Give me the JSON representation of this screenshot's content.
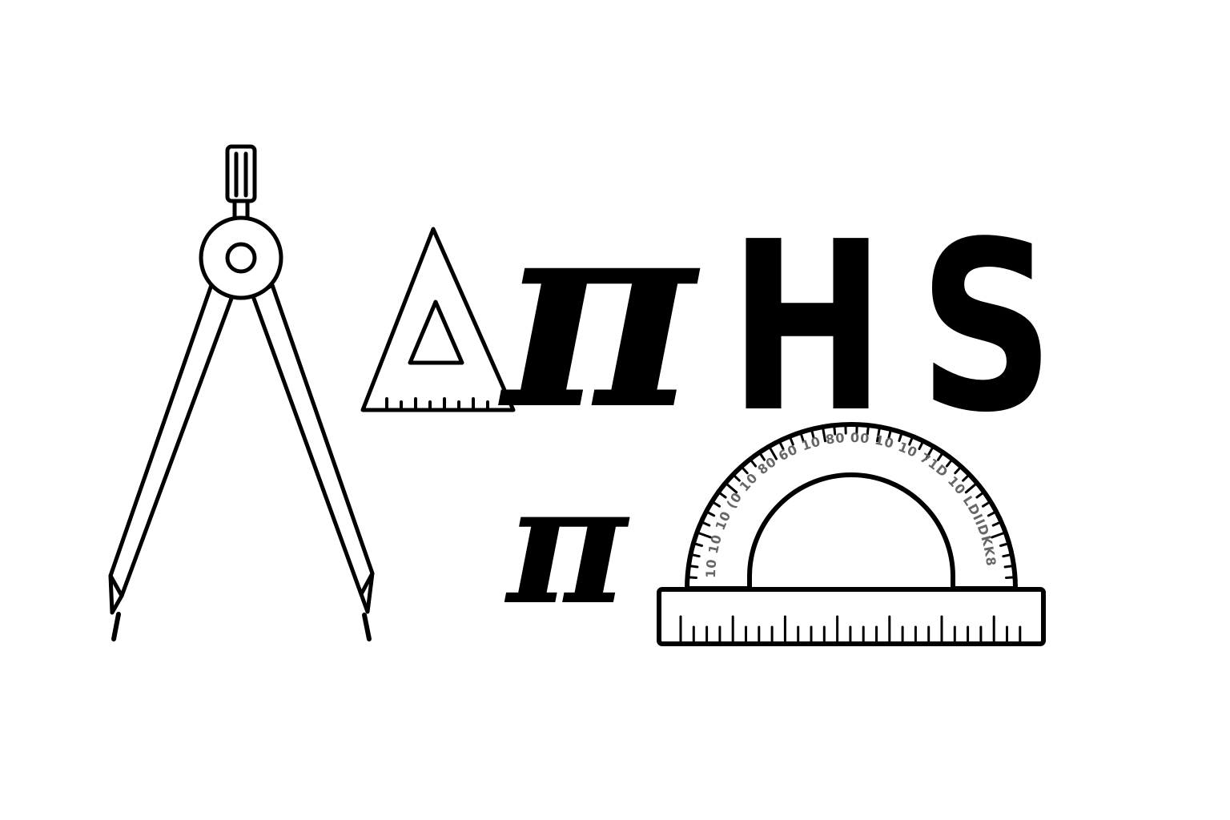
{
  "logo": {
    "letter_pi_large": "π",
    "letter_h": "H",
    "letter_s": "S",
    "letter_pi_small": "π",
    "protractor_scale_text": "10 10 10 (0 10 80 60 10 80 00 10 10 71D 10 LDIIDKK8"
  },
  "icons": [
    "compass-icon",
    "set-square-icon",
    "protractor-icon",
    "ruler-icon"
  ],
  "colors": {
    "ink": "#000000",
    "background": "#ffffff",
    "scale_text": "#666666"
  }
}
